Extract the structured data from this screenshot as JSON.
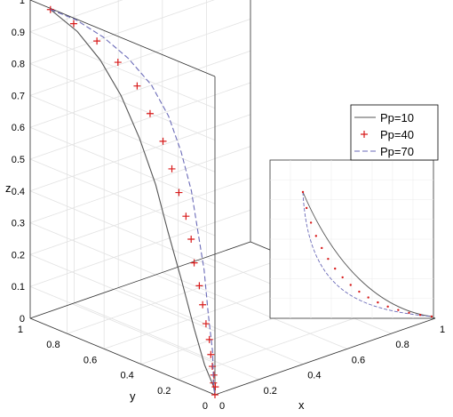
{
  "chart_data": {
    "type": "line",
    "projection": "3d",
    "title": "",
    "xlabel": "x",
    "ylabel": "y",
    "zlabel": "z",
    "xlim": [
      0,
      1
    ],
    "ylim": [
      0,
      1
    ],
    "zlim": [
      0,
      1
    ],
    "grid": true,
    "legend_position": "right",
    "x_ticks": [
      "0",
      "0.2",
      "0.4",
      "0.6",
      "0.8",
      "1"
    ],
    "y_ticks": [
      "0",
      "0.2",
      "0.4",
      "0.6",
      "0.8",
      "1"
    ],
    "z_ticks": [
      "0",
      "0.1",
      "0.2",
      "0.3",
      "0.4",
      "0.5",
      "0.6",
      "0.7",
      "0.8",
      "0.9",
      "1"
    ],
    "series": [
      {
        "name": "Pp=10",
        "style": "solid",
        "color": "#555555",
        "points": [
          [
            0.05,
            0.95,
            0.97
          ],
          [
            0.08,
            0.84,
            0.92
          ],
          [
            0.1,
            0.74,
            0.85
          ],
          [
            0.11,
            0.64,
            0.76
          ],
          [
            0.11,
            0.54,
            0.65
          ],
          [
            0.1,
            0.44,
            0.53
          ],
          [
            0.08,
            0.35,
            0.41
          ],
          [
            0.06,
            0.25,
            0.28
          ],
          [
            0.04,
            0.16,
            0.16
          ],
          [
            0.02,
            0.08,
            0.07
          ],
          [
            0.01,
            0.02,
            0.02
          ],
          [
            0,
            0,
            0
          ]
        ]
      },
      {
        "name": "Pp=40",
        "style": "plus",
        "color": "#d81b1b",
        "points": [
          [
            0.05,
            0.95,
            0.97
          ],
          [
            0.08,
            0.86,
            0.94
          ],
          [
            0.11,
            0.77,
            0.9
          ],
          [
            0.13,
            0.68,
            0.85
          ],
          [
            0.15,
            0.6,
            0.79
          ],
          [
            0.15,
            0.53,
            0.72
          ],
          [
            0.15,
            0.46,
            0.65
          ],
          [
            0.14,
            0.4,
            0.58
          ],
          [
            0.13,
            0.35,
            0.52
          ],
          [
            0.12,
            0.3,
            0.46
          ],
          [
            0.11,
            0.26,
            0.4
          ],
          [
            0.09,
            0.22,
            0.34
          ],
          [
            0.08,
            0.18,
            0.28
          ],
          [
            0.07,
            0.15,
            0.23
          ],
          [
            0.06,
            0.12,
            0.18
          ],
          [
            0.05,
            0.09,
            0.14
          ],
          [
            0.04,
            0.07,
            0.1
          ],
          [
            0.03,
            0.05,
            0.07
          ],
          [
            0.02,
            0.03,
            0.05
          ],
          [
            0.01,
            0.02,
            0.03
          ],
          [
            0.01,
            0.01,
            0.02
          ],
          [
            0,
            0,
            0
          ]
        ]
      },
      {
        "name": "Pp=70",
        "style": "dashed",
        "color": "#6a6ab8",
        "points": [
          [
            0.05,
            0.95,
            0.97
          ],
          [
            0.09,
            0.86,
            0.95
          ],
          [
            0.13,
            0.76,
            0.91
          ],
          [
            0.16,
            0.66,
            0.86
          ],
          [
            0.19,
            0.57,
            0.79
          ],
          [
            0.2,
            0.49,
            0.71
          ],
          [
            0.19,
            0.41,
            0.62
          ],
          [
            0.17,
            0.33,
            0.52
          ],
          [
            0.14,
            0.26,
            0.42
          ],
          [
            0.11,
            0.19,
            0.32
          ],
          [
            0.07,
            0.12,
            0.21
          ],
          [
            0.04,
            0.06,
            0.11
          ],
          [
            0.01,
            0.02,
            0.03
          ],
          [
            0,
            0,
            0
          ]
        ]
      }
    ]
  }
}
